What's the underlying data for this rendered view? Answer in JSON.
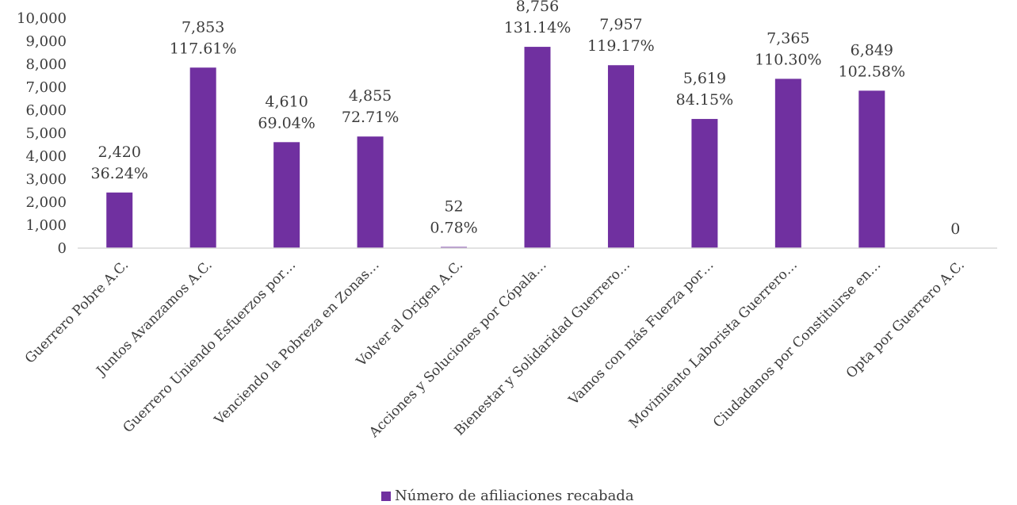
{
  "chart_data": {
    "type": "bar",
    "categories": [
      "Guerrero Pobre A.C.",
      "Juntos Avanzamos A.C.",
      "Guerrero Uniendo Esfuerzos por…",
      "Venciendo la Pobreza en Zonas…",
      "Volver al Origen A.C.",
      "Acciones y Soluciones por Cópala…",
      "Bienestar y Solidaridad Guerrero…",
      "Vamos con más Fuerza por…",
      "Movimiento Laborista Guerrero…",
      "Ciudadanos por Constituirse en…",
      "Opta por Guerrero A.C."
    ],
    "series": [
      {
        "name": "Número de afiliaciones recabada",
        "color": "#7030a0",
        "values": [
          2420,
          7853,
          4610,
          4855,
          52,
          8756,
          7957,
          5619,
          7365,
          6849,
          0
        ],
        "value_labels": [
          "2,420",
          "7,853",
          "4,610",
          "4,855",
          "52",
          "8,756",
          "7,957",
          "5,619",
          "7,365",
          "6,849",
          "0"
        ],
        "percent_labels": [
          "36.24%",
          "117.61%",
          "69.04%",
          "72.71%",
          "0.78%",
          "131.14%",
          "119.17%",
          "84.15%",
          "110.30%",
          "102.58%",
          ""
        ]
      }
    ],
    "ylim": [
      0,
      10000
    ],
    "yticks": [
      0,
      1000,
      2000,
      3000,
      4000,
      5000,
      6000,
      7000,
      8000,
      9000,
      10000
    ],
    "ytick_labels": [
      "0",
      "1,000",
      "2,000",
      "3,000",
      "4,000",
      "5,000",
      "6,000",
      "7,000",
      "8,000",
      "9,000",
      "10,000"
    ],
    "grid": false,
    "legend_position": "bottom-center"
  }
}
